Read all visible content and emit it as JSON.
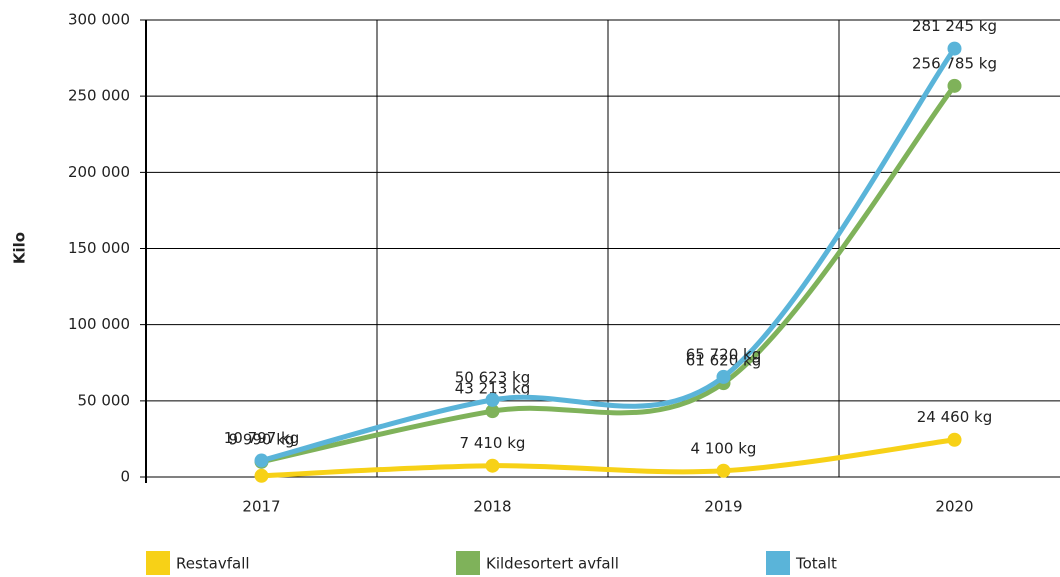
{
  "chart_data": {
    "type": "line",
    "y_label": "Kilo",
    "categories": [
      "2017",
      "2018",
      "2019",
      "2020"
    ],
    "series": [
      {
        "name": "Restavfall",
        "color": "#f7d117",
        "values": [
          807,
          7410,
          4100,
          24460
        ],
        "value_labels": [
          null,
          "7 410 kg",
          "4 100 kg",
          "24 460 kg"
        ]
      },
      {
        "name": "Kildesortert avfall",
        "color": "#7fb25a",
        "values": [
          9990,
          43213,
          61620,
          256785
        ],
        "value_labels": [
          "9 990 kg",
          "43 213 kg",
          "61 620 kg",
          "256 785 kg"
        ]
      },
      {
        "name": "Totalt",
        "color": "#5ab4d9",
        "values": [
          10797,
          50623,
          65720,
          281245
        ],
        "value_labels": [
          "10 797 kg",
          "50 623 kg",
          "65 720 kg",
          "281 245 kg"
        ]
      }
    ],
    "ylim": [
      0,
      300000
    ],
    "yticks": [
      0,
      {
        "value": 50000,
        "label": "50 000"
      },
      {
        "value": 100000,
        "label": "100 000"
      },
      {
        "value": 150000,
        "label": "150 000"
      },
      {
        "value": 200000,
        "label": "200 000"
      },
      {
        "value": 250000,
        "label": "250 000"
      },
      {
        "value": 300000,
        "label": "300 000"
      }
    ],
    "grid": true,
    "smooth": true,
    "legend": "bottom"
  }
}
